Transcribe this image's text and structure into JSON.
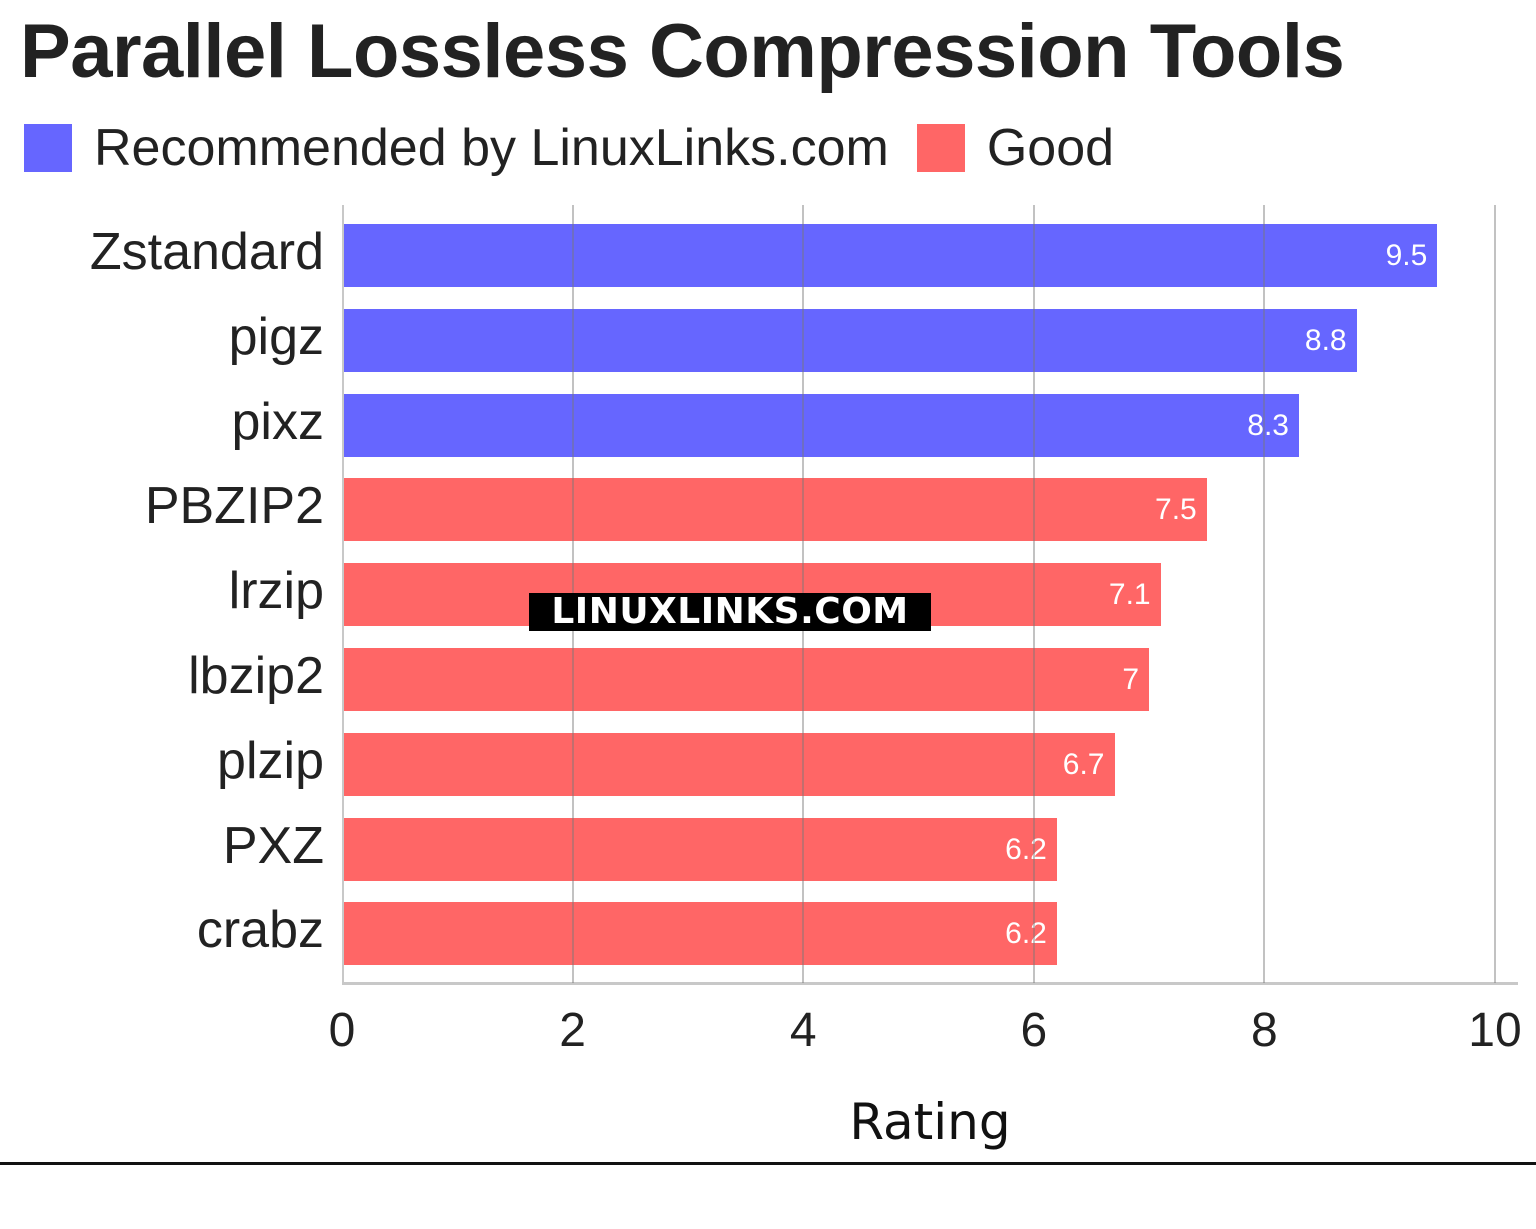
{
  "title": "Parallel Lossless Compression Tools",
  "legend": [
    {
      "label": "Recommended by LinuxLinks.com",
      "color": "#6666ff"
    },
    {
      "label": "Good",
      "color": "#ff6666"
    }
  ],
  "watermark": "LINUXLINKS.COM",
  "chart_data": {
    "type": "bar",
    "orientation": "horizontal",
    "title": "Parallel Lossless Compression Tools",
    "xlabel": "Rating",
    "ylabel": "",
    "xlim": [
      0,
      10
    ],
    "x_ticks": [
      "0",
      "2",
      "4",
      "6",
      "8",
      "10"
    ],
    "grid": true,
    "legend_position": "top-left",
    "categories": [
      "Zstandard",
      "pigz",
      "pixz",
      "PBZIP2",
      "lrzip",
      "lbzip2",
      "plzip",
      "PXZ",
      "crabz"
    ],
    "values": [
      9.5,
      8.8,
      8.3,
      7.5,
      7.1,
      7,
      6.7,
      6.2,
      6.2
    ],
    "value_labels": [
      "9.5",
      "8.8",
      "8.3",
      "7.5",
      "7.1",
      "7",
      "6.7",
      "6.2",
      "6.2"
    ],
    "series_membership": [
      "Recommended by LinuxLinks.com",
      "Recommended by LinuxLinks.com",
      "Recommended by LinuxLinks.com",
      "Good",
      "Good",
      "Good",
      "Good",
      "Good",
      "Good"
    ],
    "colors": [
      "#6666ff",
      "#6666ff",
      "#6666ff",
      "#ff6666",
      "#ff6666",
      "#ff6666",
      "#ff6666",
      "#ff6666",
      "#ff6666"
    ]
  }
}
